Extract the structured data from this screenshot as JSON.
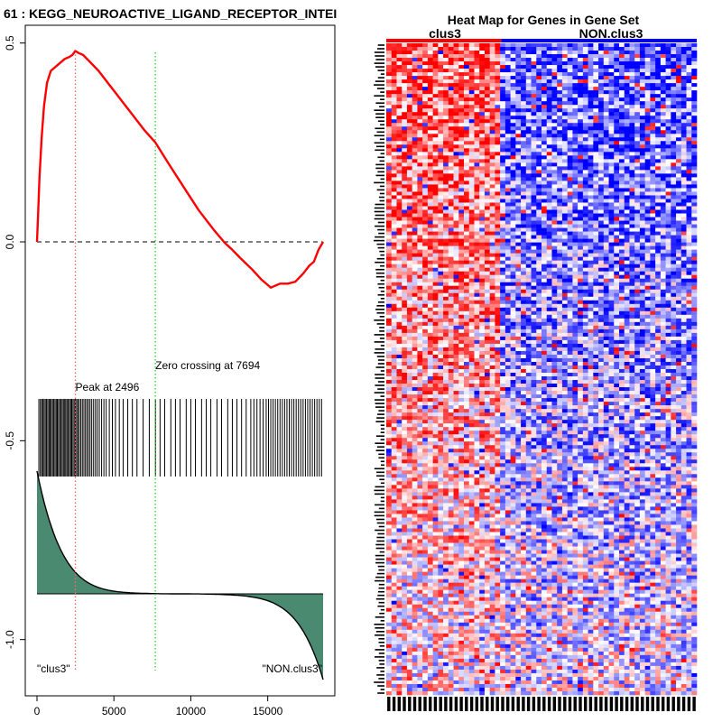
{
  "chart_data": [
    {
      "type": "line",
      "title": "61 : KEGG_NEUROACTIVE_LIGAND_RECEPTOR_INTEI",
      "xlabel": "",
      "ylabel": "",
      "xlim": [
        0,
        18700
      ],
      "ylim": [
        -1.14,
        0.52
      ],
      "x_ticks": [
        0,
        5000,
        10000,
        15000
      ],
      "x_tick_labels": [
        "0",
        "5000",
        "10000",
        "15000"
      ],
      "y_ticks": [
        0.5,
        0.0,
        -0.5,
        -1.0
      ],
      "y_tick_labels": [
        "0.5",
        "0.0",
        "-0.5",
        "-1.0"
      ],
      "colors": {
        "es_curve": "#ff0000",
        "peak_line": "#ff6666",
        "zero_line": "#33cc33",
        "metric_fill": "#4a8a70",
        "hits": "#000000"
      },
      "series": [
        {
          "name": "enrichment_score",
          "x": [
            0,
            80,
            160,
            300,
            450,
            650,
            900,
            1200,
            1500,
            1800,
            2100,
            2300,
            2496,
            2700,
            3000,
            3500,
            4000,
            5000,
            6000,
            7000,
            7694,
            8500,
            9500,
            10500,
            11500,
            12200,
            12700,
            13200,
            14000,
            14600,
            15200,
            15500,
            15800,
            16300,
            16800,
            17300,
            17700,
            18000,
            18300,
            18600
          ],
          "y": [
            0.0,
            0.08,
            0.16,
            0.26,
            0.34,
            0.4,
            0.43,
            0.44,
            0.45,
            0.46,
            0.465,
            0.47,
            0.48,
            0.475,
            0.47,
            0.45,
            0.43,
            0.38,
            0.33,
            0.28,
            0.25,
            0.2,
            0.14,
            0.08,
            0.03,
            -0.002,
            -0.02,
            -0.04,
            -0.07,
            -0.095,
            -0.115,
            -0.11,
            -0.105,
            -0.105,
            -0.1,
            -0.08,
            -0.06,
            -0.05,
            -0.02,
            0.0
          ]
        }
      ],
      "peak": {
        "x": 2496,
        "label": "Peak at 2496"
      },
      "zero_crossing": {
        "x": 7694,
        "label": "Zero crossing at 7694"
      },
      "hit_positions": [
        120,
        220,
        300,
        380,
        460,
        540,
        620,
        700,
        780,
        850,
        930,
        1010,
        1090,
        1170,
        1250,
        1320,
        1400,
        1480,
        1560,
        1640,
        1720,
        1800,
        1870,
        1950,
        2030,
        2110,
        2190,
        2260,
        2340,
        2420,
        2500,
        2580,
        2660,
        2750,
        2850,
        2950,
        3050,
        3150,
        3250,
        3350,
        3450,
        3560,
        3680,
        3800,
        3920,
        4050,
        4200,
        4350,
        4500,
        4700,
        4900,
        5100,
        5350,
        5600,
        5900,
        6200,
        6500,
        6900,
        7300,
        7700,
        8000,
        8300,
        8700,
        9000,
        9300,
        9700,
        10000,
        10300,
        10700,
        11000,
        11300,
        11700,
        12000,
        12400,
        12700,
        13000,
        13300,
        13600,
        13900,
        14100,
        14300,
        14500,
        14700,
        14900,
        15050,
        15200,
        15350,
        15500,
        15650,
        15800,
        15950,
        16100,
        16250,
        16400,
        16550,
        16700,
        16850,
        17000,
        17150,
        17300,
        17450,
        17600,
        17750,
        17900,
        18050,
        18200,
        18350,
        18500
      ],
      "metric_labels": {
        "left": "\"clus3\"",
        "right": "\"NON.clus3\""
      }
    },
    {
      "type": "heatmap",
      "title": "Heat Map for Genes in Gene Set",
      "groups": [
        {
          "name": "clus3",
          "color": "#ff0000",
          "fraction": 0.37
        },
        {
          "name": "NON.clus3",
          "color": "#0000ff",
          "fraction": 0.63
        }
      ],
      "rows": 180,
      "cols": 60,
      "value_range": [
        -1,
        1
      ],
      "color_scale": {
        "low": "#0000ff",
        "mid": "#ffffff",
        "high": "#ff0000"
      }
    }
  ]
}
